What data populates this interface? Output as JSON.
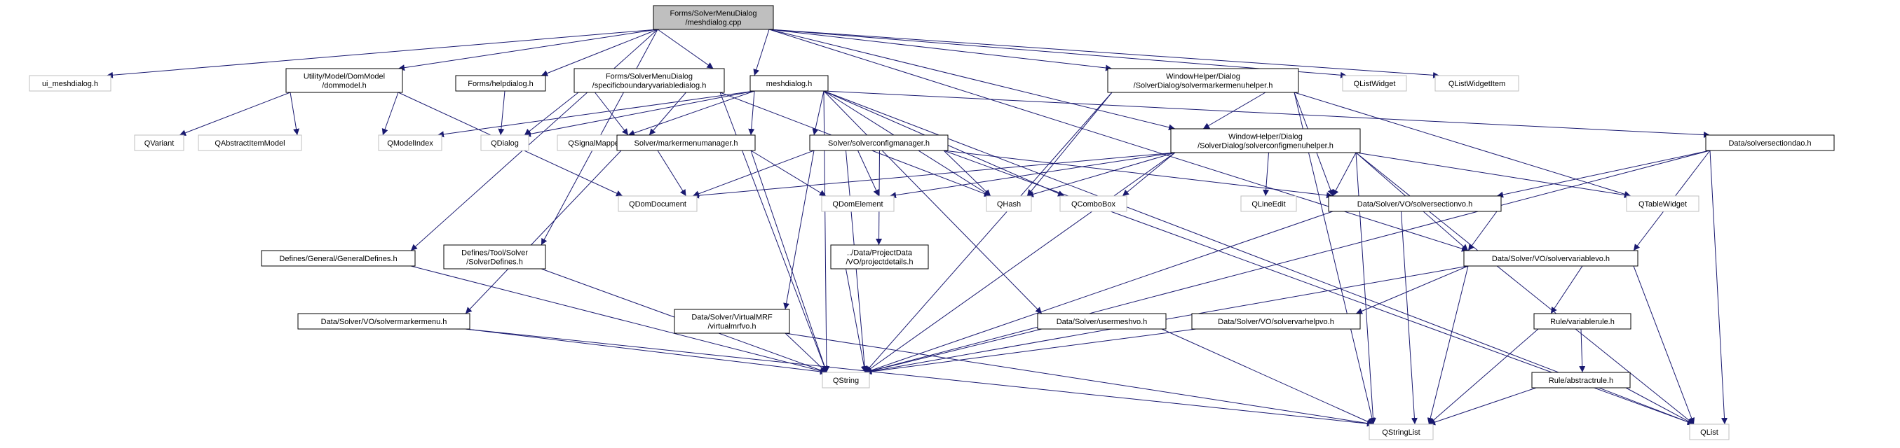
{
  "diagram": {
    "colors": {
      "root_fill": "#bfbfbf",
      "node_border": "#000000",
      "external_border": "#bfbfbf",
      "edge": "#191970",
      "text": "#000000"
    },
    "nodes": [
      {
        "id": "root",
        "lines": [
          "Forms/SolverMenuDialog",
          "/meshdialog.cpp"
        ],
        "style": "root"
      },
      {
        "id": "ui_meshdialog",
        "lines": [
          "ui_meshdialog.h"
        ],
        "style": "external"
      },
      {
        "id": "dommodel",
        "lines": [
          "Utility/Model/DomModel",
          "/dommodel.h"
        ],
        "style": "normal"
      },
      {
        "id": "helpdialog",
        "lines": [
          "Forms/helpdialog.h"
        ],
        "style": "normal"
      },
      {
        "id": "specbvd",
        "lines": [
          "Forms/SolverMenuDialog",
          "/specificboundaryvariabledialog.h"
        ],
        "style": "normal"
      },
      {
        "id": "meshdialog",
        "lines": [
          "meshdialog.h"
        ],
        "style": "normal"
      },
      {
        "id": "smmh",
        "lines": [
          "WindowHelper/Dialog",
          "/SolverDialog/solvermarkermenuhelper.h"
        ],
        "style": "normal"
      },
      {
        "id": "qlistwidget",
        "lines": [
          "QListWidget"
        ],
        "style": "external"
      },
      {
        "id": "qlistwidgetitem",
        "lines": [
          "QListWidgetItem"
        ],
        "style": "external"
      },
      {
        "id": "qvariant",
        "lines": [
          "QVariant"
        ],
        "style": "external"
      },
      {
        "id": "qabstractitemmodel",
        "lines": [
          "QAbstractItemModel"
        ],
        "style": "external"
      },
      {
        "id": "qmodelindex",
        "lines": [
          "QModelIndex"
        ],
        "style": "external"
      },
      {
        "id": "qdialog",
        "lines": [
          "QDialog"
        ],
        "style": "external"
      },
      {
        "id": "qsignalmapper",
        "lines": [
          "QSignalMapper"
        ],
        "style": "external"
      },
      {
        "id": "markermenumanager",
        "lines": [
          "Solver/markermenumanager.h"
        ],
        "style": "normal"
      },
      {
        "id": "solverconfigmanager",
        "lines": [
          "Solver/solverconfigmanager.h"
        ],
        "style": "normal"
      },
      {
        "id": "scmh",
        "lines": [
          "WindowHelper/Dialog",
          "/SolverDialog/solverconfigmenuhelper.h"
        ],
        "style": "normal"
      },
      {
        "id": "solversectiondao",
        "lines": [
          "Data/solversectiondao.h"
        ],
        "style": "normal"
      },
      {
        "id": "qdomdocument",
        "lines": [
          "QDomDocument"
        ],
        "style": "external"
      },
      {
        "id": "qdomelement",
        "lines": [
          "QDomElement"
        ],
        "style": "external"
      },
      {
        "id": "qhash",
        "lines": [
          "QHash"
        ],
        "style": "external"
      },
      {
        "id": "qcombobox",
        "lines": [
          "QComboBox"
        ],
        "style": "external"
      },
      {
        "id": "qlineedit",
        "lines": [
          "QLineEdit"
        ],
        "style": "external"
      },
      {
        "id": "solversectionvo",
        "lines": [
          "Data/Solver/VO/solversectionvo.h"
        ],
        "style": "normal"
      },
      {
        "id": "qtablewidget",
        "lines": [
          "QTableWidget"
        ],
        "style": "external"
      },
      {
        "id": "generaldefines",
        "lines": [
          "Defines/General/GeneralDefines.h"
        ],
        "style": "normal"
      },
      {
        "id": "solverdefines",
        "lines": [
          "Defines/Tool/Solver",
          "/SolverDefines.h"
        ],
        "style": "normal"
      },
      {
        "id": "projectdetails",
        "lines": [
          "../Data/ProjectData",
          "/VO/projectdetails.h"
        ],
        "style": "normal"
      },
      {
        "id": "solvervariablevo",
        "lines": [
          "Data/Solver/VO/solvervariablevo.h"
        ],
        "style": "normal"
      },
      {
        "id": "solvermarkermenu",
        "lines": [
          "Data/Solver/VO/solvermarkermenu.h"
        ],
        "style": "normal"
      },
      {
        "id": "virtualmrfvo",
        "lines": [
          "Data/Solver/VirtualMRF",
          "/virtualmrfvo.h"
        ],
        "style": "normal"
      },
      {
        "id": "usermeshvo",
        "lines": [
          "Data/Solver/usermeshvo.h"
        ],
        "style": "normal"
      },
      {
        "id": "solvervarhelpvo",
        "lines": [
          "Data/Solver/VO/solvervarhelpvo.h"
        ],
        "style": "normal"
      },
      {
        "id": "variablerule",
        "lines": [
          "Rule/variablerule.h"
        ],
        "style": "normal"
      },
      {
        "id": "abstractrule",
        "lines": [
          "Rule/abstractrule.h"
        ],
        "style": "normal"
      },
      {
        "id": "qstring",
        "lines": [
          "QString"
        ],
        "style": "external"
      },
      {
        "id": "qstringlist",
        "lines": [
          "QStringList"
        ],
        "style": "external"
      },
      {
        "id": "qlist",
        "lines": [
          "QList"
        ],
        "style": "external"
      }
    ],
    "edges": [
      [
        "root",
        "ui_meshdialog"
      ],
      [
        "root",
        "dommodel"
      ],
      [
        "root",
        "helpdialog"
      ],
      [
        "root",
        "specbvd"
      ],
      [
        "root",
        "meshdialog"
      ],
      [
        "root",
        "smmh"
      ],
      [
        "root",
        "qlistwidget"
      ],
      [
        "root",
        "qlistwidgetitem"
      ],
      [
        "root",
        "generaldefines"
      ],
      [
        "root",
        "solverdefines"
      ],
      [
        "root",
        "scmh"
      ],
      [
        "root",
        "solvervariablevo"
      ],
      [
        "dommodel",
        "qvariant"
      ],
      [
        "dommodel",
        "qabstractitemmodel"
      ],
      [
        "dommodel",
        "qmodelindex"
      ],
      [
        "dommodel",
        "qdomdocument"
      ],
      [
        "helpdialog",
        "qdialog"
      ],
      [
        "specbvd",
        "qdialog"
      ],
      [
        "specbvd",
        "qsignalmapper"
      ],
      [
        "specbvd",
        "markermenumanager"
      ],
      [
        "specbvd",
        "qhash"
      ],
      [
        "specbvd",
        "qstring"
      ],
      [
        "meshdialog",
        "qmodelindex"
      ],
      [
        "meshdialog",
        "qdialog"
      ],
      [
        "meshdialog",
        "qsignalmapper"
      ],
      [
        "meshdialog",
        "markermenumanager"
      ],
      [
        "meshdialog",
        "solverconfigmanager"
      ],
      [
        "meshdialog",
        "qhash"
      ],
      [
        "meshdialog",
        "qcombobox"
      ],
      [
        "meshdialog",
        "usermeshvo"
      ],
      [
        "meshdialog",
        "qstring"
      ],
      [
        "meshdialog",
        "solversectiondao"
      ],
      [
        "meshdialog",
        "qlist"
      ],
      [
        "smmh",
        "qhash"
      ],
      [
        "smmh",
        "scmh"
      ],
      [
        "smmh",
        "solversectionvo"
      ],
      [
        "smmh",
        "qtablewidget"
      ],
      [
        "smmh",
        "qstring"
      ],
      [
        "smmh",
        "qstringlist"
      ],
      [
        "markermenumanager",
        "qdomdocument"
      ],
      [
        "markermenumanager",
        "qdomelement"
      ],
      [
        "markermenumanager",
        "qstring"
      ],
      [
        "markermenumanager",
        "solvermarkermenu"
      ],
      [
        "solverconfigmanager",
        "qdomdocument"
      ],
      [
        "solverconfigmanager",
        "qdomelement"
      ],
      [
        "solverconfigmanager",
        "qhash"
      ],
      [
        "solverconfigmanager",
        "projectdetails"
      ],
      [
        "solverconfigmanager",
        "virtualmrfvo"
      ],
      [
        "solverconfigmanager",
        "qstring"
      ],
      [
        "solverconfigmanager",
        "solversectionvo"
      ],
      [
        "solverconfigmanager",
        "qlist"
      ],
      [
        "scmh",
        "qdomdocument"
      ],
      [
        "scmh",
        "qdomelement"
      ],
      [
        "scmh",
        "qhash"
      ],
      [
        "scmh",
        "qcombobox"
      ],
      [
        "scmh",
        "qlineedit"
      ],
      [
        "scmh",
        "solversectionvo"
      ],
      [
        "scmh",
        "qtablewidget"
      ],
      [
        "scmh",
        "solvervariablevo"
      ],
      [
        "scmh",
        "qstring"
      ],
      [
        "scmh",
        "qstringlist"
      ],
      [
        "scmh",
        "qlist"
      ],
      [
        "solversectiondao",
        "solversectionvo"
      ],
      [
        "solversectiondao",
        "solvervariablevo"
      ],
      [
        "solversectiondao",
        "qstring"
      ],
      [
        "solversectiondao",
        "qlist"
      ],
      [
        "solversectionvo",
        "solvervariablevo"
      ],
      [
        "solversectionvo",
        "qstring"
      ],
      [
        "solversectionvo",
        "qstringlist"
      ],
      [
        "solvervariablevo",
        "solvervarhelpvo"
      ],
      [
        "solvervariablevo",
        "variablerule"
      ],
      [
        "solvervariablevo",
        "qstring"
      ],
      [
        "solvervariablevo",
        "qstringlist"
      ],
      [
        "solvervariablevo",
        "qlist"
      ],
      [
        "generaldefines",
        "qstring"
      ],
      [
        "solverdefines",
        "qstring"
      ],
      [
        "projectdetails",
        "qstring"
      ],
      [
        "solvermarkermenu",
        "qstring"
      ],
      [
        "solvermarkermenu",
        "qstringlist"
      ],
      [
        "virtualmrfvo",
        "qstring"
      ],
      [
        "virtualmrfvo",
        "qstringlist"
      ],
      [
        "usermeshvo",
        "qstring"
      ],
      [
        "usermeshvo",
        "qstringlist"
      ],
      [
        "solvervarhelpvo",
        "qstring"
      ],
      [
        "variablerule",
        "abstractrule"
      ],
      [
        "variablerule",
        "qstringlist"
      ],
      [
        "abstractrule",
        "qstringlist"
      ],
      [
        "abstractrule",
        "qlist"
      ]
    ]
  }
}
